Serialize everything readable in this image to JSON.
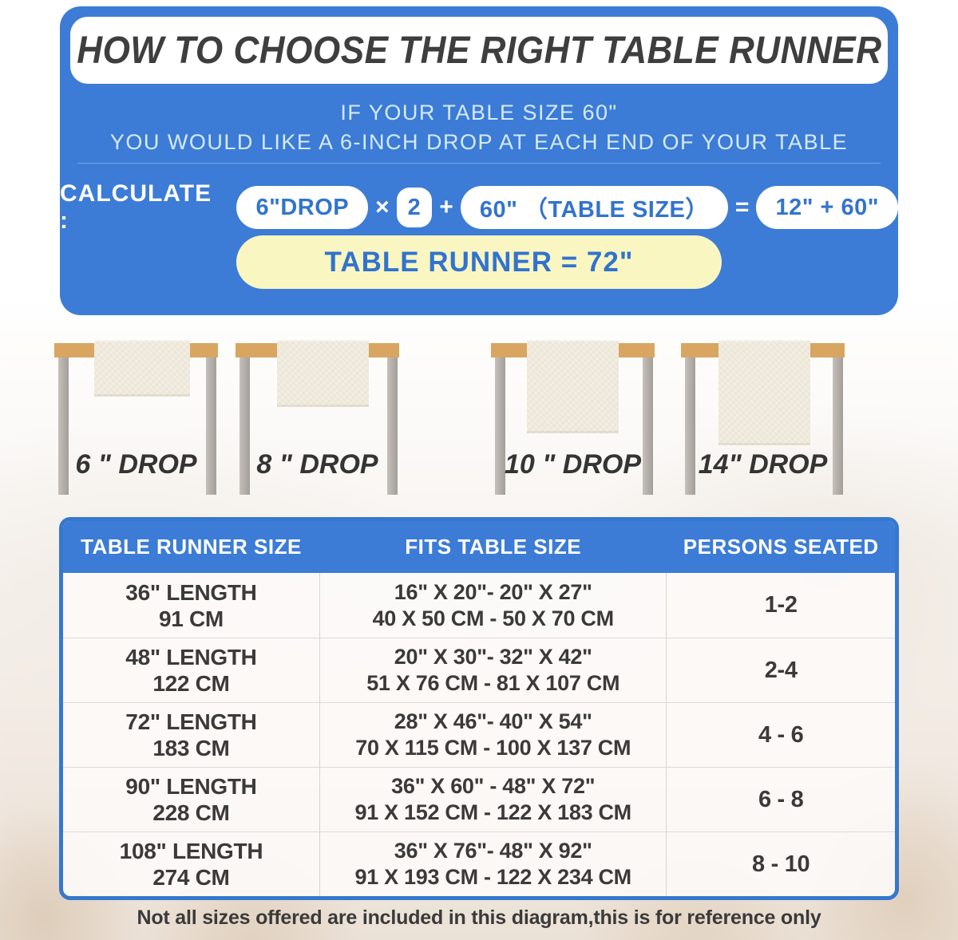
{
  "header": {
    "title": "HOW TO CHOOSE THE RIGHT TABLE RUNNER",
    "line1": "IF YOUR TABLE SIZE 60\"",
    "line2": "YOU WOULD LIKE A 6-INCH DROP AT EACH END OF YOUR TABLE"
  },
  "calc": {
    "label": "CALCULATE :",
    "drop_pill": "6\"DROP",
    "times": "×",
    "multiplier": "2",
    "plus": "+",
    "table_size_pill": "60\" （TABLE SIZE）",
    "equals": "=",
    "sum_pill": "12\" + 60\"",
    "result": "TABLE RUNNER = 72\""
  },
  "drops": [
    {
      "label": "6 \" DROP"
    },
    {
      "label": "8 \" DROP"
    },
    {
      "label": "10 \" DROP"
    },
    {
      "label": "14\" DROP"
    }
  ],
  "table": {
    "headers": [
      "TABLE RUNNER SIZE",
      "FITS TABLE SIZE",
      "PERSONS SEATED"
    ],
    "rows": [
      {
        "size_in": "36\" LENGTH",
        "size_cm": "91 CM",
        "fits_in": "16\" X 20\"- 20\" X 27\"",
        "fits_cm": "40 X 50 CM - 50 X 70 CM",
        "persons": "1-2"
      },
      {
        "size_in": "48\" LENGTH",
        "size_cm": "122 CM",
        "fits_in": "20\" X 30\"- 32\" X 42\"",
        "fits_cm": "51 X 76 CM - 81 X 107 CM",
        "persons": "2-4"
      },
      {
        "size_in": "72\" LENGTH",
        "size_cm": "183 CM",
        "fits_in": "28\" X 46\"- 40\" X 54\"",
        "fits_cm": "70 X 115 CM - 100 X 137 CM",
        "persons": "4 - 6"
      },
      {
        "size_in": "90\" LENGTH",
        "size_cm": "228 CM",
        "fits_in": "36\" X 60\" - 48\" X 72\"",
        "fits_cm": "91 X 152 CM - 122 X 183 CM",
        "persons": "6 - 8"
      },
      {
        "size_in": "108\" LENGTH",
        "size_cm": "274 CM",
        "fits_in": "36\" X 76\"- 48\" X 92\"",
        "fits_cm": "91 X 193 CM - 122 X 234 CM",
        "persons": "8 - 10"
      }
    ]
  },
  "footnote": "Not all sizes offered are included in this diagram,this is for reference only",
  "colors": {
    "panel_blue": "#3c7cd6",
    "pill_text_blue": "#3274cd",
    "result_yellow": "#faf6c1",
    "tabletop_tan": "#d8a660",
    "leg_gray": "#b3ada8",
    "runner_cream": "#efeadc",
    "title_dark": "#3e3e3e"
  }
}
